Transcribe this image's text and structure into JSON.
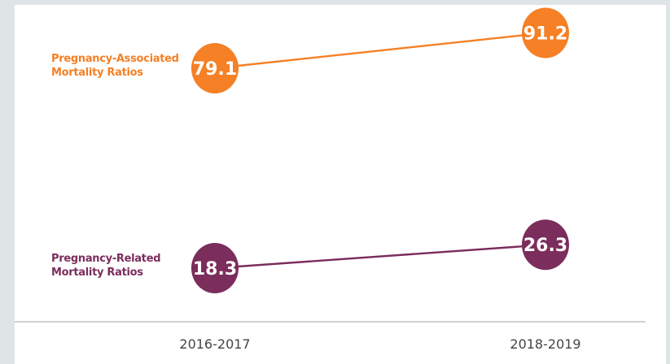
{
  "chart_data": {
    "type": "line",
    "categories": [
      "2016-2017",
      "2018-2019"
    ],
    "series": [
      {
        "name_lines": [
          "Pregnancy-Associated",
          "Mortality Ratios"
        ],
        "values": [
          79.1,
          91.2
        ],
        "labels": [
          "79.1",
          "91.2"
        ],
        "color": "#f58025"
      },
      {
        "name_lines": [
          "Pregnancy-Related",
          "Mortality Ratios"
        ],
        "values": [
          18.3,
          26.3
        ],
        "labels": [
          "18.3",
          "26.3"
        ],
        "color": "#7b2d5c"
      }
    ],
    "baseline_color": "#b8b8b8",
    "grid": false
  }
}
